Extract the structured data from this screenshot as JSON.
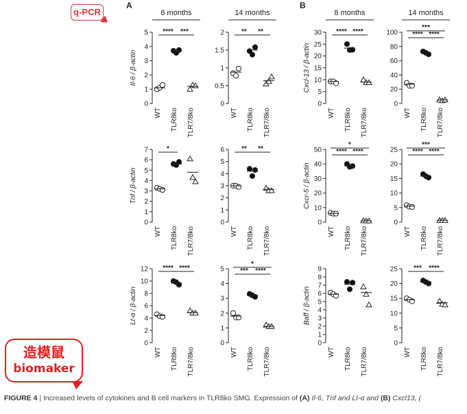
{
  "badges": {
    "qpcr": "q-PCR",
    "line1": "造模鼠",
    "line2": "biomaker"
  },
  "caption": {
    "fig": "FIGURE 4",
    "text": " | Increased levels of cytokines and B cell markers in TLR8ko SMG. Expression of ",
    "a": "(A)",
    "a_genes": " Il-6, Tnf and Lt-α and ",
    "b": "(B)",
    "b_genes": " Cxcl13, ("
  },
  "chart_data": [
    {
      "panel_letter": "A",
      "type": "scatter",
      "title": "8 months",
      "ylabel": "Il-6 / β-actin",
      "categories": [
        "WT",
        "TLR8ko",
        "TLR7/8ko"
      ],
      "ylim": [
        0,
        5
      ],
      "ticks": [
        0,
        1,
        2,
        3,
        4,
        5
      ],
      "markers": [
        "open-circle",
        "filled-circle",
        "open-triangle"
      ],
      "values": [
        [
          1.0,
          1.1,
          1.3
        ],
        [
          3.7,
          3.55,
          3.75
        ],
        [
          1.0,
          1.3,
          1.25
        ]
      ],
      "means": [
        1.1,
        3.68,
        1.2
      ],
      "sig": [
        {
          "label": "****",
          "from": 0,
          "to": 1
        },
        {
          "label": "***",
          "from": 1,
          "to": 2
        }
      ]
    },
    {
      "type": "scatter",
      "title": "14 months",
      "ylabel": "",
      "categories": [
        "WT",
        "TLR8ko",
        "TLR7/8ko"
      ],
      "ylim": [
        0,
        2.0
      ],
      "ticks": [
        0,
        0.5,
        1.0,
        1.5,
        2.0
      ],
      "markers": [
        "open-circle",
        "filled-circle",
        "open-triangle"
      ],
      "values": [
        [
          0.85,
          0.78,
          0.98
        ],
        [
          1.47,
          1.37,
          1.58
        ],
        [
          0.55,
          0.62,
          0.75
        ]
      ],
      "means": [
        0.88,
        1.5,
        0.64
      ],
      "sig": [
        {
          "label": "**",
          "from": 0,
          "to": 1
        },
        {
          "label": "**",
          "from": 1,
          "to": 2
        }
      ]
    },
    {
      "panel_letter": "B",
      "type": "scatter",
      "title": "8 months",
      "ylabel": "Cxcl-13 / β-actin",
      "categories": [
        "WT",
        "TLR8ko",
        "TLR7/8ko"
      ],
      "ylim": [
        0,
        30
      ],
      "ticks": [
        0,
        5,
        10,
        15,
        20,
        25,
        30
      ],
      "markers": [
        "open-circle",
        "filled-circle",
        "open-triangle"
      ],
      "values": [
        [
          9.3,
          9.3,
          8.5
        ],
        [
          25,
          22.5,
          22.6
        ],
        [
          10,
          8.8,
          8.8
        ]
      ],
      "means": [
        9.3,
        23.3,
        9.0
      ],
      "sig": [
        {
          "label": "****",
          "from": 0,
          "to": 1
        },
        {
          "label": "****",
          "from": 1,
          "to": 2
        }
      ]
    },
    {
      "type": "scatter",
      "title": "14 months",
      "ylabel": "",
      "categories": [
        "WT",
        "TLR8ko",
        "TLR7/8ko"
      ],
      "ylim": [
        0,
        100
      ],
      "ticks": [
        0,
        20,
        40,
        60,
        80,
        100
      ],
      "markers": [
        "open-circle",
        "filled-circle",
        "open-triangle"
      ],
      "values": [
        [
          29,
          25,
          25
        ],
        [
          73,
          71,
          69
        ],
        [
          5,
          4,
          5
        ]
      ],
      "means": [
        27,
        71,
        5
      ],
      "sig": [
        {
          "label": "****",
          "from": 0,
          "to": 1
        },
        {
          "label": "****",
          "from": 1,
          "to": 2
        },
        {
          "label": "***",
          "from": 0,
          "to": 2
        }
      ]
    },
    {
      "type": "scatter",
      "title": "",
      "ylabel": "Tnf / β-actin",
      "categories": [
        "WT",
        "TLR8ko",
        "TLR7/8ko"
      ],
      "ylim": [
        0,
        7
      ],
      "ticks": [
        0,
        1,
        2,
        3,
        4,
        5,
        6,
        7
      ],
      "markers": [
        "open-circle",
        "filled-circle",
        "open-triangle"
      ],
      "values": [
        [
          3.3,
          3.2,
          3.1
        ],
        [
          5.6,
          5.5,
          5.8
        ],
        [
          6.1,
          4.3,
          3.9
        ]
      ],
      "means": [
        3.2,
        5.6,
        4.8
      ],
      "sig": [
        {
          "label": "*",
          "from": 0,
          "to": 1
        }
      ]
    },
    {
      "type": "scatter",
      "title": "",
      "ylabel": "",
      "categories": [
        "WT",
        "TLR8ko",
        "TLR7/8ko"
      ],
      "ylim": [
        0,
        6
      ],
      "ticks": [
        0,
        1,
        2,
        3,
        4,
        5,
        6
      ],
      "markers": [
        "open-circle",
        "filled-circle",
        "open-triangle"
      ],
      "values": [
        [
          3.0,
          3.0,
          2.9
        ],
        [
          4.4,
          3.8,
          4.3
        ],
        [
          2.8,
          2.6,
          2.6
        ]
      ],
      "means": [
        3.0,
        4.2,
        2.7
      ],
      "sig": [
        {
          "label": "**",
          "from": 0,
          "to": 1
        },
        {
          "label": "**",
          "from": 1,
          "to": 2
        }
      ]
    },
    {
      "type": "scatter",
      "title": "",
      "ylabel": "Cxcr-5 / β-actin",
      "categories": [
        "WT",
        "TLR8ko",
        "TLR7/8ko"
      ],
      "ylim": [
        0,
        50
      ],
      "ticks": [
        0,
        10,
        20,
        30,
        40,
        50
      ],
      "markers": [
        "open-circle",
        "filled-circle",
        "open-triangle"
      ],
      "values": [
        [
          6.3,
          5.8,
          5.8
        ],
        [
          40,
          38,
          38.5
        ],
        [
          1,
          0.8,
          0.8
        ]
      ],
      "means": [
        6.0,
        38.8,
        0.9
      ],
      "sig": [
        {
          "label": "****",
          "from": 0,
          "to": 1
        },
        {
          "label": "****",
          "from": 1,
          "to": 2
        },
        {
          "label": "*",
          "from": 0,
          "to": 2
        }
      ]
    },
    {
      "type": "scatter",
      "title": "",
      "ylabel": "",
      "categories": [
        "WT",
        "TLR8ko",
        "TLR7/8ko"
      ],
      "ylim": [
        0,
        25
      ],
      "ticks": [
        0,
        5,
        10,
        15,
        20,
        25
      ],
      "markers": [
        "open-circle",
        "filled-circle",
        "open-triangle"
      ],
      "values": [
        [
          5.8,
          5.3,
          5.2
        ],
        [
          16.5,
          15.8,
          15.3
        ],
        [
          0.6,
          0.6,
          0.6
        ]
      ],
      "means": [
        5.5,
        15.8,
        0.6
      ],
      "sig": [
        {
          "label": "****",
          "from": 0,
          "to": 1
        },
        {
          "label": "****",
          "from": 1,
          "to": 2
        },
        {
          "label": "***",
          "from": 0,
          "to": 2
        }
      ]
    },
    {
      "type": "scatter",
      "title": "",
      "ylabel": "Lt-α / β-actin",
      "categories": [
        "WT",
        "TLR8ko",
        "TLR7/8ko"
      ],
      "ylim": [
        0,
        12
      ],
      "ticks": [
        0,
        2,
        4,
        6,
        8,
        10,
        12
      ],
      "markers": [
        "open-circle",
        "filled-circle",
        "open-triangle"
      ],
      "values": [
        [
          4.6,
          4.3,
          4.2
        ],
        [
          10,
          9.8,
          9.4
        ],
        [
          5.2,
          4.8,
          4.8
        ]
      ],
      "means": [
        4.4,
        9.7,
        4.9
      ],
      "sig": [
        {
          "label": "****",
          "from": 0,
          "to": 1
        },
        {
          "label": "****",
          "from": 1,
          "to": 2
        }
      ]
    },
    {
      "type": "scatter",
      "title": "",
      "ylabel": "",
      "categories": [
        "WT",
        "TLR8ko",
        "TLR7/8ko"
      ],
      "ylim": [
        0,
        5
      ],
      "ticks": [
        0,
        1,
        2,
        3,
        4,
        5
      ],
      "markers": [
        "open-circle",
        "filled-circle",
        "open-triangle"
      ],
      "values": [
        [
          2.0,
          1.7,
          1.7
        ],
        [
          3.3,
          3.2,
          3.1
        ],
        [
          1.2,
          1.1,
          1.1
        ]
      ],
      "means": [
        1.8,
        3.2,
        1.1
      ],
      "sig": [
        {
          "label": "***",
          "from": 0,
          "to": 1
        },
        {
          "label": "****",
          "from": 1,
          "to": 2
        },
        {
          "label": "*",
          "from": 0,
          "to": 2
        }
      ]
    },
    {
      "type": "scatter",
      "title": "",
      "ylabel": "Baff / β-actin",
      "categories": [
        "WT",
        "TLR8ko",
        "TLR7/8ko"
      ],
      "ylim": [
        0,
        9
      ],
      "ticks": [
        0,
        1,
        2,
        3,
        4,
        5,
        6,
        7,
        8,
        9
      ],
      "markers": [
        "open-circle",
        "filled-circle",
        "open-triangle"
      ],
      "values": [
        [
          6.1,
          5.9,
          5.7
        ],
        [
          7.4,
          6.5,
          7.3
        ],
        [
          6.8,
          5.9,
          4.6
        ]
      ],
      "means": [
        5.9,
        7.1,
        6.1
      ],
      "sig": []
    },
    {
      "type": "scatter",
      "title": "",
      "ylabel": "",
      "categories": [
        "WT",
        "TLR8ko",
        "TLR7/8ko"
      ],
      "ylim": [
        0,
        25
      ],
      "ticks": [
        0,
        5,
        10,
        15,
        20,
        25
      ],
      "markers": [
        "open-circle",
        "filled-circle",
        "open-triangle"
      ],
      "values": [
        [
          15,
          14.5,
          14
        ],
        [
          21,
          20.5,
          20
        ],
        [
          14,
          13,
          12.8
        ]
      ],
      "means": [
        14.5,
        20.5,
        13.5
      ],
      "sig": [
        {
          "label": "***",
          "from": 0,
          "to": 1
        },
        {
          "label": "****",
          "from": 1,
          "to": 2
        }
      ]
    }
  ]
}
